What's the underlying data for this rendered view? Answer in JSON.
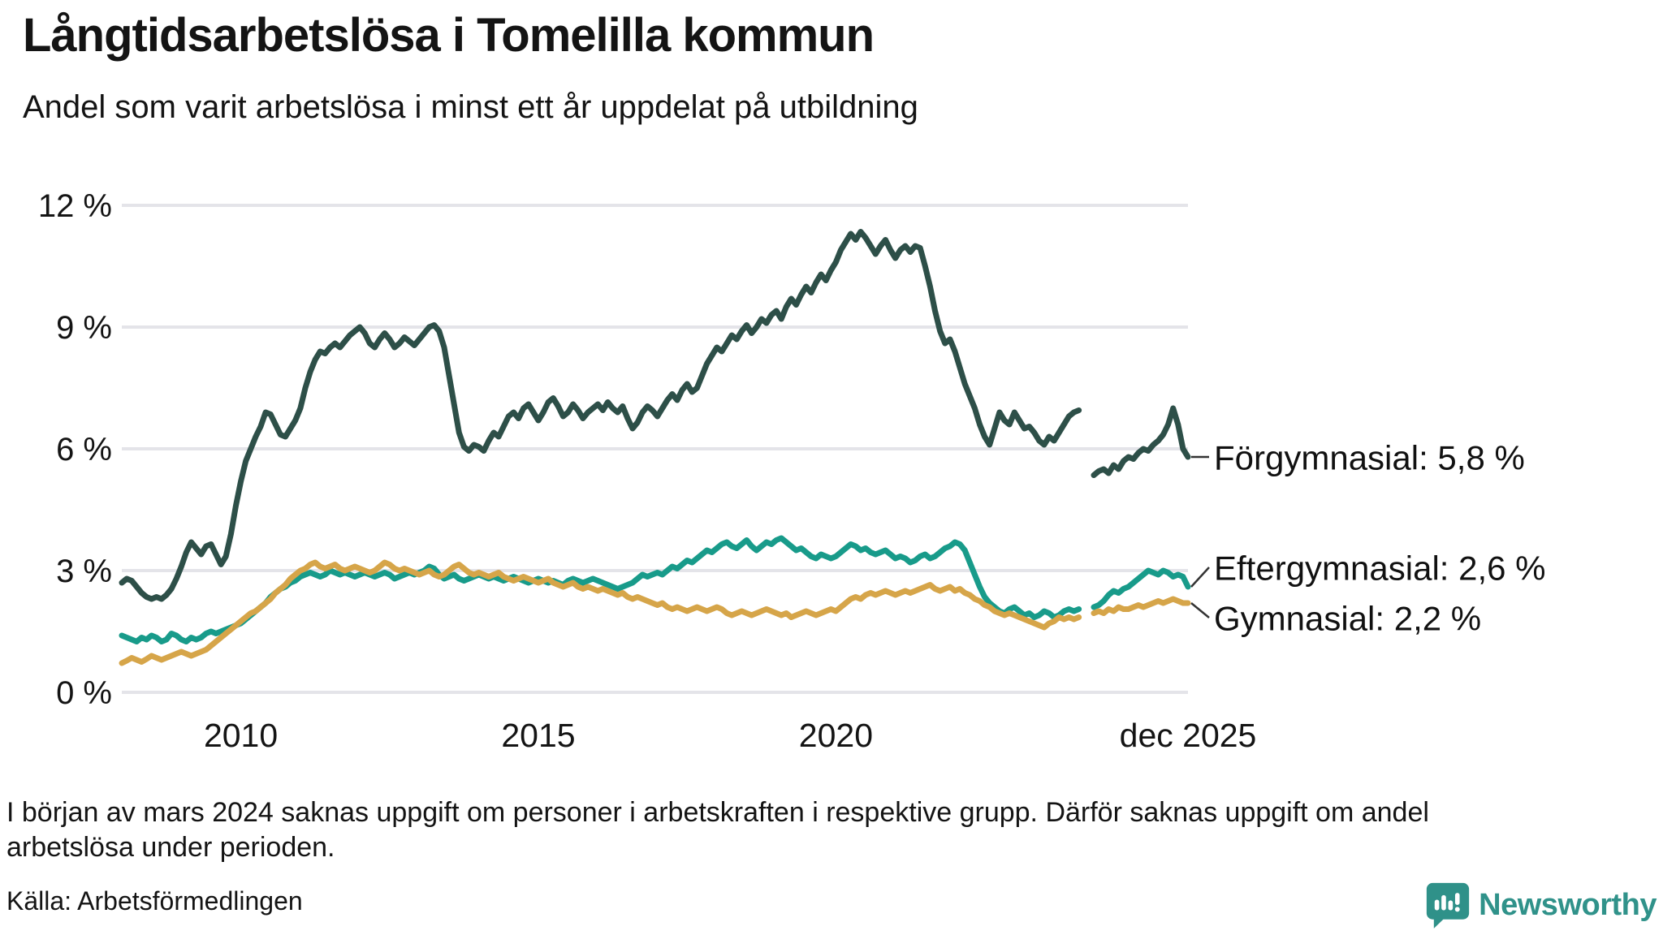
{
  "header": {
    "title": "Långtidsarbetslösa i Tomelilla kommun",
    "subtitle": "Andel som varit arbetslösa i minst ett år uppdelat på utbildning"
  },
  "chart_data": {
    "type": "line",
    "x_unit": "month",
    "x_start": "2008-01",
    "x_end": "2025-12",
    "ylim": [
      0,
      12
    ],
    "grid": true,
    "y_ticks": [
      {
        "value": 0,
        "label": "0 %"
      },
      {
        "value": 3,
        "label": "3 %"
      },
      {
        "value": 6,
        "label": "6 %"
      },
      {
        "value": 9,
        "label": "9 %"
      },
      {
        "value": 12,
        "label": "12 %"
      }
    ],
    "x_ticks": [
      {
        "label": "2010",
        "month_index": 24
      },
      {
        "label": "2015",
        "month_index": 84
      },
      {
        "label": "2020",
        "month_index": 144
      },
      {
        "label": "dec 2025",
        "month_index": 215
      }
    ],
    "series": [
      {
        "name": "Förgymnasial",
        "end_label": "Förgymnasial: 5,8 %",
        "last_value": 5.8,
        "color": "#2d4f48",
        "values": [
          2.7,
          2.8,
          2.75,
          2.6,
          2.45,
          2.35,
          2.3,
          2.35,
          2.3,
          2.4,
          2.55,
          2.8,
          3.1,
          3.45,
          3.7,
          3.55,
          3.4,
          3.6,
          3.65,
          3.4,
          3.15,
          3.35,
          3.9,
          4.6,
          5.2,
          5.7,
          6.0,
          6.3,
          6.55,
          6.9,
          6.85,
          6.6,
          6.35,
          6.3,
          6.5,
          6.7,
          7.0,
          7.5,
          7.9,
          8.2,
          8.4,
          8.35,
          8.5,
          8.6,
          8.5,
          8.65,
          8.8,
          8.9,
          9.0,
          8.85,
          8.6,
          8.5,
          8.7,
          8.85,
          8.7,
          8.5,
          8.6,
          8.75,
          8.65,
          8.55,
          8.7,
          8.85,
          9.0,
          9.05,
          8.9,
          8.5,
          7.8,
          7.1,
          6.4,
          6.05,
          5.95,
          6.1,
          6.05,
          5.95,
          6.2,
          6.4,
          6.3,
          6.55,
          6.8,
          6.9,
          6.75,
          7.0,
          7.1,
          6.9,
          6.7,
          6.9,
          7.15,
          7.25,
          7.05,
          6.8,
          6.9,
          7.1,
          6.95,
          6.75,
          6.9,
          7.0,
          7.1,
          6.95,
          7.15,
          7.0,
          6.9,
          7.05,
          6.75,
          6.5,
          6.65,
          6.9,
          7.05,
          6.95,
          6.8,
          7.0,
          7.2,
          7.35,
          7.2,
          7.45,
          7.6,
          7.4,
          7.5,
          7.8,
          8.1,
          8.3,
          8.5,
          8.4,
          8.6,
          8.8,
          8.7,
          8.9,
          9.05,
          8.85,
          9.0,
          9.2,
          9.1,
          9.3,
          9.4,
          9.2,
          9.5,
          9.7,
          9.55,
          9.8,
          10.0,
          9.85,
          10.1,
          10.3,
          10.15,
          10.4,
          10.6,
          10.9,
          11.1,
          11.3,
          11.15,
          11.35,
          11.2,
          11.0,
          10.8,
          11.0,
          11.15,
          10.9,
          10.7,
          10.9,
          11.0,
          10.85,
          11.0,
          10.95,
          10.5,
          10.0,
          9.4,
          8.9,
          8.6,
          8.7,
          8.4,
          8.0,
          7.6,
          7.3,
          7.0,
          6.6,
          6.3,
          6.1,
          6.5,
          6.9,
          6.7,
          6.6,
          6.9,
          6.7,
          6.5,
          6.55,
          6.4,
          6.2,
          6.1,
          6.3,
          6.2,
          6.4,
          6.6,
          6.8,
          6.9,
          6.95,
          null,
          null,
          5.35,
          5.45,
          5.5,
          5.4,
          5.6,
          5.5,
          5.7,
          5.8,
          5.75,
          5.9,
          6.0,
          5.95,
          6.1,
          6.2,
          6.35,
          6.6,
          7.0,
          6.6,
          6.0,
          5.8
        ]
      },
      {
        "name": "Eftergymnasial",
        "end_label": "Eftergymnasial: 2,6 %",
        "last_value": 2.6,
        "color": "#189b8a",
        "values": [
          1.4,
          1.35,
          1.3,
          1.25,
          1.35,
          1.3,
          1.4,
          1.35,
          1.25,
          1.3,
          1.45,
          1.4,
          1.3,
          1.25,
          1.35,
          1.3,
          1.35,
          1.45,
          1.5,
          1.45,
          1.5,
          1.55,
          1.6,
          1.65,
          1.7,
          1.8,
          1.9,
          2.0,
          2.1,
          2.2,
          2.35,
          2.45,
          2.55,
          2.6,
          2.7,
          2.75,
          2.85,
          2.9,
          2.95,
          2.9,
          2.85,
          2.9,
          3.0,
          2.95,
          2.9,
          2.95,
          2.9,
          2.85,
          2.9,
          2.95,
          2.9,
          2.85,
          2.9,
          2.95,
          2.9,
          2.8,
          2.85,
          2.9,
          2.95,
          2.9,
          2.95,
          3.0,
          3.1,
          3.05,
          2.9,
          2.8,
          2.85,
          2.9,
          2.8,
          2.75,
          2.8,
          2.85,
          2.9,
          2.85,
          2.8,
          2.85,
          2.8,
          2.75,
          2.8,
          2.85,
          2.8,
          2.75,
          2.7,
          2.75,
          2.8,
          2.75,
          2.7,
          2.75,
          2.7,
          2.65,
          2.75,
          2.8,
          2.75,
          2.7,
          2.75,
          2.8,
          2.75,
          2.7,
          2.65,
          2.6,
          2.55,
          2.6,
          2.65,
          2.7,
          2.8,
          2.9,
          2.85,
          2.9,
          2.95,
          2.9,
          3.0,
          3.1,
          3.05,
          3.15,
          3.25,
          3.2,
          3.3,
          3.4,
          3.5,
          3.45,
          3.55,
          3.65,
          3.7,
          3.6,
          3.55,
          3.65,
          3.75,
          3.6,
          3.5,
          3.6,
          3.7,
          3.65,
          3.75,
          3.8,
          3.7,
          3.6,
          3.5,
          3.55,
          3.45,
          3.35,
          3.3,
          3.4,
          3.35,
          3.3,
          3.35,
          3.45,
          3.55,
          3.65,
          3.6,
          3.5,
          3.55,
          3.45,
          3.4,
          3.45,
          3.5,
          3.4,
          3.3,
          3.35,
          3.3,
          3.2,
          3.25,
          3.35,
          3.4,
          3.3,
          3.35,
          3.45,
          3.55,
          3.6,
          3.7,
          3.65,
          3.5,
          3.2,
          2.9,
          2.6,
          2.35,
          2.2,
          2.1,
          2.0,
          1.95,
          2.05,
          2.1,
          2.0,
          1.9,
          1.95,
          1.85,
          1.9,
          2.0,
          1.95,
          1.85,
          1.9,
          2.0,
          2.05,
          2.0,
          2.05,
          null,
          null,
          2.1,
          2.15,
          2.25,
          2.4,
          2.5,
          2.45,
          2.55,
          2.6,
          2.7,
          2.8,
          2.9,
          3.0,
          2.95,
          2.9,
          3.0,
          2.95,
          2.85,
          2.9,
          2.85,
          2.6
        ]
      },
      {
        "name": "Gymnasial",
        "end_label": "Gymnasial: 2,2 %",
        "last_value": 2.2,
        "color": "#d6a549",
        "values": [
          0.72,
          0.78,
          0.85,
          0.8,
          0.75,
          0.82,
          0.9,
          0.85,
          0.8,
          0.85,
          0.9,
          0.95,
          1.0,
          0.95,
          0.9,
          0.95,
          1.0,
          1.05,
          1.15,
          1.25,
          1.35,
          1.45,
          1.55,
          1.65,
          1.75,
          1.85,
          1.95,
          2.0,
          2.1,
          2.2,
          2.3,
          2.45,
          2.55,
          2.65,
          2.8,
          2.9,
          3.0,
          3.05,
          3.15,
          3.2,
          3.1,
          3.05,
          3.1,
          3.15,
          3.05,
          3.0,
          3.05,
          3.1,
          3.05,
          3.0,
          2.95,
          3.0,
          3.1,
          3.2,
          3.15,
          3.05,
          3.0,
          3.05,
          3.0,
          2.95,
          2.9,
          2.95,
          3.0,
          2.9,
          2.85,
          2.9,
          3.0,
          3.1,
          3.15,
          3.05,
          2.95,
          2.9,
          2.95,
          2.9,
          2.85,
          2.9,
          2.95,
          2.85,
          2.8,
          2.75,
          2.8,
          2.85,
          2.8,
          2.75,
          2.7,
          2.75,
          2.8,
          2.7,
          2.65,
          2.6,
          2.65,
          2.7,
          2.6,
          2.55,
          2.6,
          2.55,
          2.5,
          2.55,
          2.5,
          2.45,
          2.4,
          2.45,
          2.35,
          2.3,
          2.35,
          2.3,
          2.25,
          2.2,
          2.15,
          2.2,
          2.1,
          2.05,
          2.1,
          2.05,
          2.0,
          2.05,
          2.1,
          2.05,
          2.0,
          2.05,
          2.1,
          2.05,
          1.95,
          1.9,
          1.95,
          2.0,
          1.95,
          1.9,
          1.95,
          2.0,
          2.05,
          2.0,
          1.95,
          1.9,
          1.95,
          1.85,
          1.9,
          1.95,
          2.0,
          1.95,
          1.9,
          1.95,
          2.0,
          2.05,
          2.0,
          2.1,
          2.2,
          2.3,
          2.35,
          2.3,
          2.4,
          2.45,
          2.4,
          2.45,
          2.5,
          2.45,
          2.4,
          2.45,
          2.5,
          2.45,
          2.5,
          2.55,
          2.6,
          2.65,
          2.55,
          2.5,
          2.55,
          2.6,
          2.5,
          2.55,
          2.45,
          2.4,
          2.3,
          2.25,
          2.15,
          2.1,
          2.0,
          1.95,
          1.9,
          1.95,
          1.9,
          1.85,
          1.8,
          1.75,
          1.7,
          1.65,
          1.6,
          1.7,
          1.75,
          1.85,
          1.8,
          1.85,
          1.8,
          1.85,
          null,
          null,
          1.95,
          2.0,
          1.95,
          2.05,
          2.0,
          2.1,
          2.05,
          2.05,
          2.1,
          2.15,
          2.1,
          2.15,
          2.2,
          2.25,
          2.2,
          2.25,
          2.3,
          2.25,
          2.2,
          2.2
        ]
      }
    ]
  },
  "footer": {
    "note": "I början av mars 2024 saknas uppgift om personer i arbetskraften i respektive grupp. Därför saknas uppgift om andel arbetslösa under perioden.",
    "source": "Källa: Arbetsförmedlingen",
    "brand": "Newsworthy"
  },
  "colors": {
    "grid": "#e4e4e9",
    "text": "#141414",
    "connector": "#333333",
    "brand_teal": "#30928a"
  }
}
